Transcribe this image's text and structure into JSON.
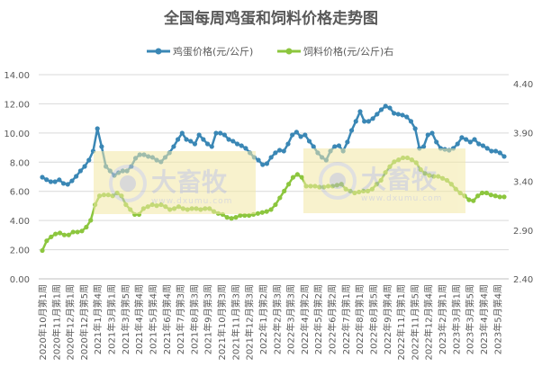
{
  "chart_data": {
    "type": "line",
    "title": "全国每周鸡蛋和饲料价格走势图",
    "watermark": "大畜牧 www.dxumu.com",
    "grid": true,
    "legend_position": "top",
    "y_left": {
      "ylim": [
        0,
        14
      ],
      "ticks": [
        "0.00",
        "2.00",
        "4.00",
        "6.00",
        "8.00",
        "10.00",
        "12.00",
        "14.00"
      ]
    },
    "y_right": {
      "ylim": [
        2.4,
        4.4
      ],
      "ticks": [
        "2.40",
        "2.90",
        "3.40",
        "3.90",
        "4.40"
      ]
    },
    "x_labels": [
      "2020年10月第1周",
      "2020年11月第1周",
      "2020年12月第1周",
      "2020年12月第5周",
      "2021年1月第4周",
      "2021年3月第1周",
      "2021年3月第5周",
      "2021年4月第4周",
      "2021年5月第4周",
      "2021年6月第4周",
      "2021年7月第3周",
      "2021年8月第3周",
      "2021年9月第3周",
      "2021年10月第3周",
      "2021年11月第3周",
      "2021年12月第3周",
      "2022年1月第2周",
      "2022年2月第3周",
      "2022年3月第3周",
      "2022年4月第2周",
      "2022年5月第2周",
      "2022年6月第2周",
      "2022年7月第1周",
      "2022年8月第1周",
      "2022年8月第5周",
      "2022年9月第4周",
      "2022年11月第1周",
      "2022年11月第5周",
      "2022年12月第4周",
      "2023年2月第1周",
      "2023年3月第1周",
      "2023年3月第5周",
      "2023年4月第4周",
      "2023年5月第4周"
    ],
    "series": [
      {
        "name": "鸡蛋价格(元/公斤)",
        "axis": "left",
        "color": "#3a87b5",
        "values": [
          6.97,
          6.8,
          6.66,
          6.66,
          6.79,
          6.54,
          6.48,
          6.72,
          7.03,
          7.4,
          7.71,
          8.14,
          8.76,
          10.3,
          9.07,
          7.71,
          7.4,
          7.09,
          7.28,
          7.4,
          7.4,
          7.71,
          8.27,
          8.51,
          8.51,
          8.39,
          8.33,
          8.14,
          8.02,
          8.33,
          8.64,
          9.07,
          9.56,
          9.99,
          9.56,
          9.44,
          9.25,
          9.87,
          9.56,
          9.25,
          9.07,
          9.99,
          9.99,
          9.87,
          9.56,
          9.44,
          9.25,
          9.13,
          8.95,
          8.64,
          8.33,
          8.14,
          7.83,
          7.9,
          8.33,
          8.64,
          8.82,
          8.76,
          9.25,
          9.87,
          10.06,
          9.75,
          9.87,
          9.44,
          9.07,
          8.64,
          8.33,
          8.14,
          8.76,
          9.07,
          9.13,
          8.76,
          9.38,
          10.18,
          10.8,
          11.47,
          10.8,
          10.8,
          10.99,
          11.29,
          11.6,
          11.84,
          11.72,
          11.35,
          11.29,
          11.23,
          11.1,
          10.8,
          10.3,
          8.95,
          9.07,
          9.87,
          9.99,
          9.38,
          8.95,
          8.88,
          8.82,
          8.95,
          9.25,
          9.69,
          9.56,
          9.38,
          9.56,
          9.25,
          9.13,
          8.95,
          8.76,
          8.76,
          8.64,
          8.39
        ]
      },
      {
        "name": "饲料价格(元/公斤)右",
        "axis": "right",
        "color": "#8cc63e",
        "values": [
          2.69,
          2.79,
          2.83,
          2.86,
          2.87,
          2.85,
          2.85,
          2.88,
          2.88,
          2.89,
          2.93,
          3.0,
          3.16,
          3.25,
          3.26,
          3.26,
          3.25,
          3.28,
          3.25,
          3.16,
          3.11,
          3.06,
          3.06,
          3.12,
          3.14,
          3.16,
          3.15,
          3.16,
          3.14,
          3.11,
          3.12,
          3.14,
          3.12,
          3.11,
          3.12,
          3.12,
          3.11,
          3.12,
          3.12,
          3.09,
          3.07,
          3.06,
          3.03,
          3.02,
          3.03,
          3.05,
          3.05,
          3.05,
          3.06,
          3.07,
          3.08,
          3.09,
          3.11,
          3.16,
          3.23,
          3.3,
          3.37,
          3.44,
          3.47,
          3.44,
          3.35,
          3.35,
          3.35,
          3.34,
          3.34,
          3.35,
          3.35,
          3.36,
          3.37,
          3.32,
          3.3,
          3.28,
          3.29,
          3.3,
          3.3,
          3.32,
          3.37,
          3.41,
          3.49,
          3.55,
          3.6,
          3.62,
          3.64,
          3.64,
          3.62,
          3.59,
          3.52,
          3.48,
          3.46,
          3.45,
          3.45,
          3.43,
          3.41,
          3.37,
          3.32,
          3.28,
          3.25,
          3.21,
          3.2,
          3.25,
          3.28,
          3.28,
          3.26,
          3.25,
          3.24,
          3.24
        ]
      }
    ]
  }
}
